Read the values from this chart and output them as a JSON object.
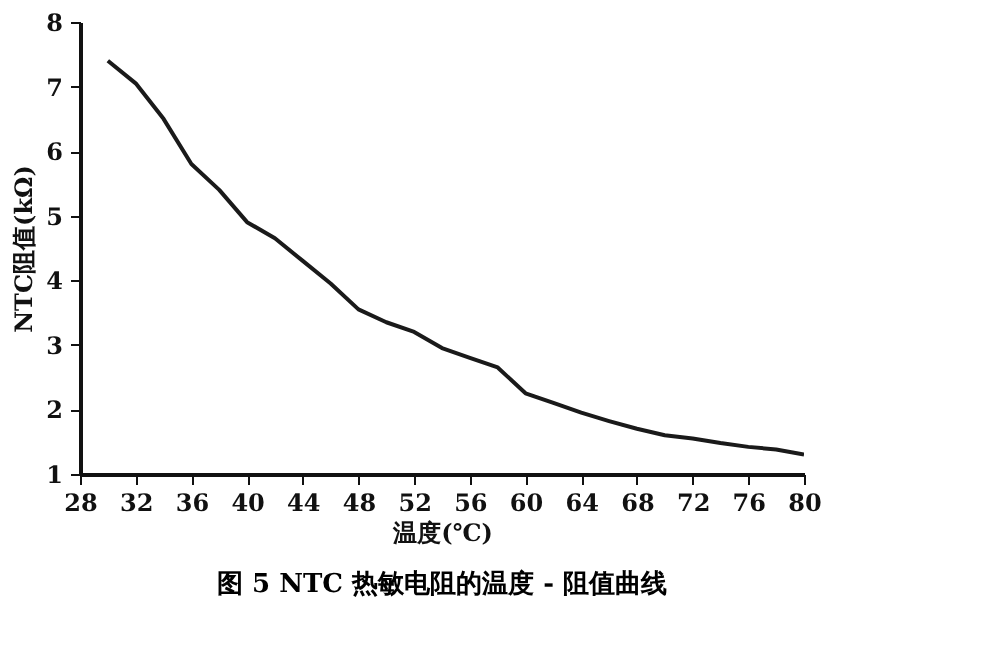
{
  "chart_data": {
    "type": "line",
    "title": "图 5  NTC 热敏电阻的温度 - 阻值曲线",
    "xlabel": "温度(℃)",
    "ylabel": "NTC阻值(kΩ)",
    "x": [
      30,
      32,
      34,
      36,
      38,
      40,
      42,
      44,
      46,
      48,
      50,
      52,
      54,
      56,
      58,
      60,
      62,
      64,
      66,
      68,
      70,
      72,
      74,
      76,
      78,
      80
    ],
    "series": [
      {
        "color": "#1a1a1a",
        "values": [
          7.4,
          7.05,
          6.5,
          5.8,
          5.4,
          4.9,
          4.65,
          4.3,
          3.95,
          3.55,
          3.35,
          3.2,
          2.95,
          2.8,
          2.65,
          2.25,
          2.1,
          1.95,
          1.82,
          1.7,
          1.6,
          1.55,
          1.48,
          1.42,
          1.38,
          1.3
        ]
      }
    ],
    "xlim": [
      28,
      80
    ],
    "xticks": [
      28,
      32,
      36,
      40,
      44,
      48,
      52,
      56,
      60,
      64,
      68,
      72,
      76,
      80
    ],
    "ylim": [
      1,
      8
    ],
    "yticks": [
      1,
      2,
      3,
      4,
      5,
      6,
      7,
      8
    ],
    "grid": false,
    "legend": false,
    "marker": "none",
    "line_style": "solid"
  }
}
